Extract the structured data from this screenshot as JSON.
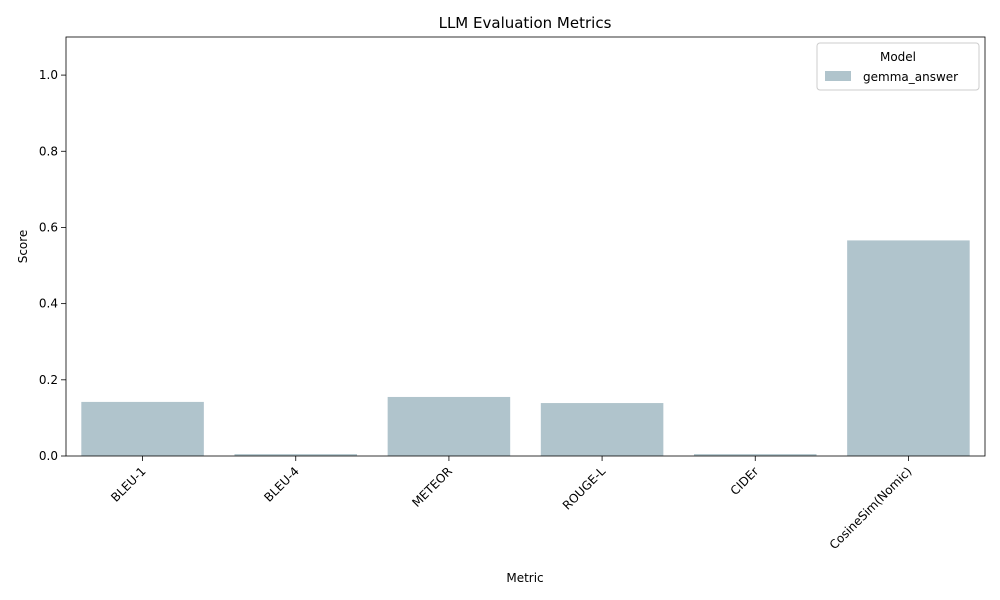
{
  "chart_data": {
    "type": "bar",
    "title": "LLM Evaluation Metrics",
    "xlabel": "Metric",
    "ylabel": "Score",
    "categories": [
      "BLEU-1",
      "BLEU-4",
      "METEOR",
      "ROUGE-L",
      "CIDEr",
      "CosineSim(Nomic)"
    ],
    "series": [
      {
        "name": "gemma_answer",
        "values": [
          0.142,
          0.005,
          0.155,
          0.139,
          0.005,
          0.566
        ],
        "color": "#b0c4cc"
      }
    ],
    "ylim": [
      0,
      1.1
    ],
    "yticks": [
      "0.0",
      "0.2",
      "0.4",
      "0.6",
      "0.8",
      "1.0"
    ],
    "legend": {
      "title": "Model",
      "placement": "top-right"
    },
    "grid": false
  }
}
